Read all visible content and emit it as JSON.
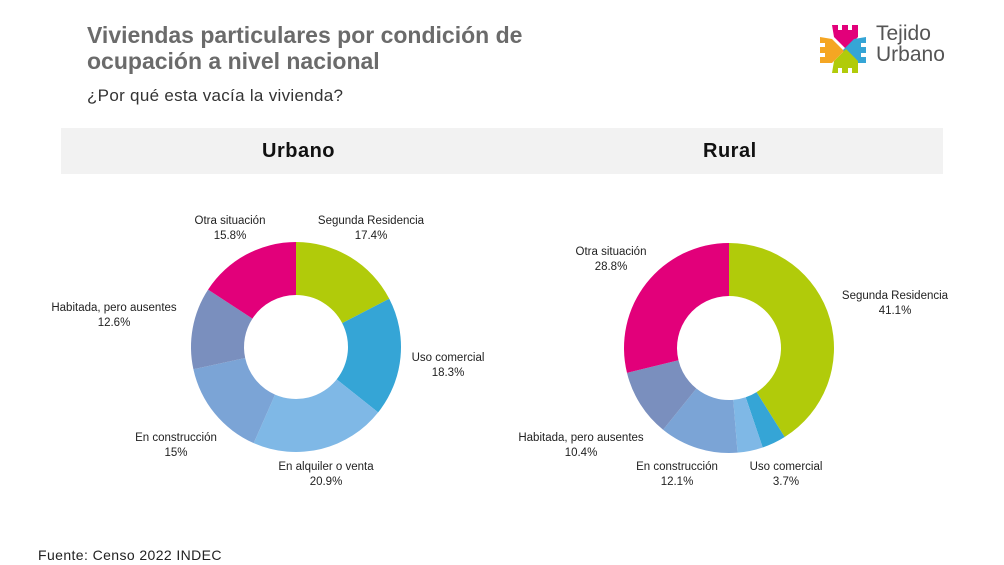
{
  "header": {
    "title_line1": "Viviendas particulares por condición de",
    "title_line2": "ocupación a nivel nacional",
    "subtitle": "¿Por qué esta vacía la vivienda?"
  },
  "logo": {
    "line1": "Tejido",
    "line2": "Urbano",
    "colors": [
      "#e2007a",
      "#35a5d6",
      "#b1cb0a",
      "#f5a623"
    ]
  },
  "band": {
    "left": "Urbano",
    "right": "Rural"
  },
  "footer": {
    "source": "Fuente: Censo 2022 INDEC"
  },
  "chart_data": [
    {
      "type": "pie",
      "variant": "donut",
      "title": "Urbano",
      "categories": [
        "Segunda Residencia",
        "Uso comercial",
        "En alquiler o venta",
        "En construcción",
        "Habitada, pero ausentes",
        "Otra situación"
      ],
      "values": [
        17.4,
        18.3,
        20.9,
        15,
        12.6,
        15.8
      ],
      "value_labels": [
        "17.4%",
        "18.3%",
        "20.9%",
        "15%",
        "12.6%",
        "15.8%"
      ],
      "colors": [
        "#b1cb0a",
        "#35a5d6",
        "#7fb8e6",
        "#7ba4d6",
        "#7a8fbe",
        "#e2007a"
      ],
      "show_label": [
        true,
        true,
        true,
        true,
        true,
        true
      ]
    },
    {
      "type": "pie",
      "variant": "donut",
      "title": "Rural",
      "categories": [
        "Segunda Residencia",
        "Uso comercial",
        "En alquiler o venta",
        "En construcción",
        "Habitada, pero ausentes",
        "Otra situación"
      ],
      "values": [
        41.1,
        3.7,
        3.9,
        12.1,
        10.4,
        28.8
      ],
      "value_labels": [
        "41.1%",
        "3.7%",
        "",
        "12.1%",
        "10.4%",
        "28.8%"
      ],
      "colors": [
        "#b1cb0a",
        "#35a5d6",
        "#7fb8e6",
        "#7ba4d6",
        "#7a8fbe",
        "#e2007a"
      ],
      "show_label": [
        true,
        true,
        false,
        true,
        true,
        true
      ]
    }
  ]
}
